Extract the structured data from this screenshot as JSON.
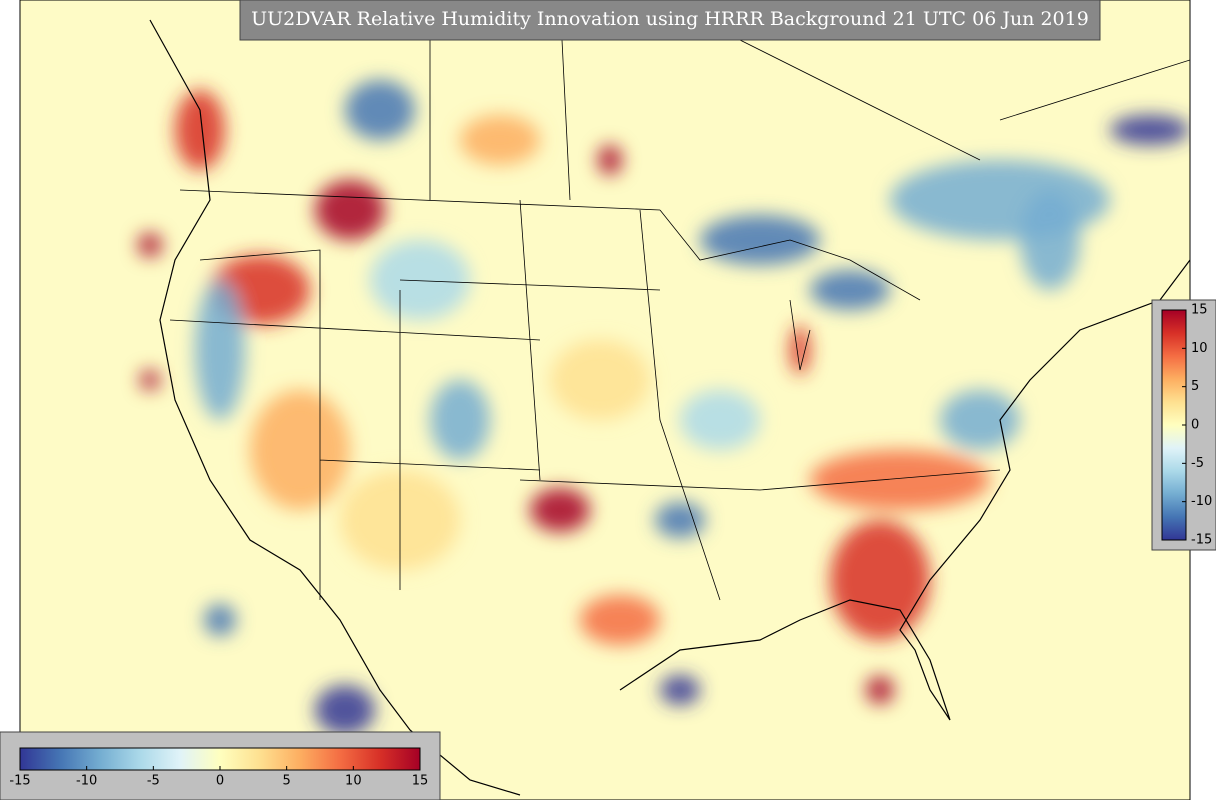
{
  "title": "UU2DVAR Relative Humidity Innovation using HRRR Background 21 UTC 06 Jun 2019",
  "colorbar": {
    "lim": [
      -15,
      15
    ],
    "ticks": [
      -15,
      -10,
      -5,
      0,
      5,
      10,
      15
    ],
    "colors": [
      "#313695",
      "#4575b4",
      "#74add1",
      "#abd9e9",
      "#e0f3f8",
      "#ffffbf",
      "#fee090",
      "#fdae61",
      "#f46d43",
      "#d73027",
      "#a50026"
    ]
  }
}
